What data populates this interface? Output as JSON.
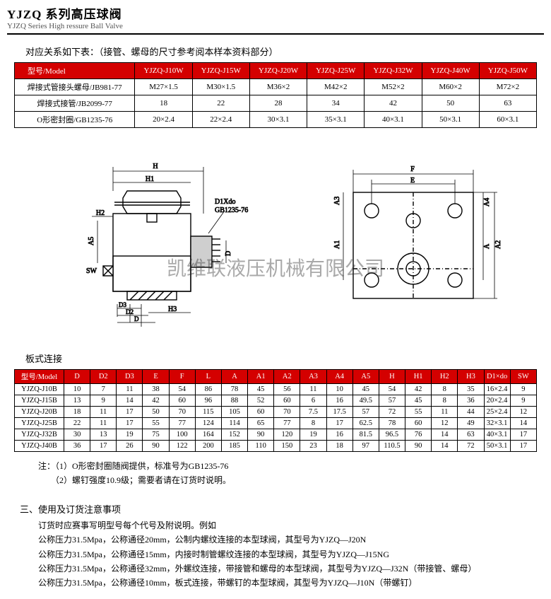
{
  "header": {
    "title_cn": "YJZQ 系列高压球阀",
    "title_en": "YJZQ Series High ressure Ball Valve"
  },
  "subline": "对应关系如下表：（接管、螺母的尺寸参考阅本样本资料部分）",
  "table1": {
    "model_label": "型号/Model",
    "cols": [
      "YJZQ-J10W",
      "YJZQ-J15W",
      "YJZQ-J20W",
      "YJZQ-J25W",
      "YJZQ-J32W",
      "YJZQ-J40W",
      "YJZQ-J50W"
    ],
    "rows": [
      {
        "label": "焊接式管接头螺母/JB981-77",
        "cells": [
          "M27×1.5",
          "M30×1.5",
          "M36×2",
          "M42×2",
          "M52×2",
          "M60×2",
          "M72×2"
        ]
      },
      {
        "label": "焊接式接管/JB2099-77",
        "cells": [
          "18",
          "22",
          "28",
          "34",
          "42",
          "50",
          "63"
        ]
      },
      {
        "label": "O形密封圈/GB1235-76",
        "cells": [
          "20×2.4",
          "22×2.4",
          "30×3.1",
          "35×3.1",
          "40×3.1",
          "50×3.1",
          "60×3.1"
        ]
      }
    ],
    "col_first_width": 170,
    "col_rest_width": 81
  },
  "diagram": {
    "label_d1xdo": "D1Xdo",
    "label_gb": "GB1235-76",
    "dims_left": [
      "H",
      "H1",
      "H2",
      "A5",
      "SW",
      "D3",
      "D2",
      "D",
      "H3"
    ],
    "dims_right": [
      "F",
      "E",
      "A3",
      "A4",
      "A1",
      "A",
      "A2"
    ]
  },
  "watermark": "凯维联液压机械有限公司",
  "section2_label": "板式连接",
  "table2": {
    "model_label": "型号/Model",
    "cols": [
      "D",
      "D2",
      "D3",
      "E",
      "F",
      "L",
      "A",
      "A1",
      "A2",
      "A3",
      "A4",
      "A5",
      "H",
      "H1",
      "H2",
      "H3",
      "D1×do",
      "SW"
    ],
    "rows": [
      {
        "label": "YJZQ-J10B",
        "cells": [
          "10",
          "7",
          "11",
          "38",
          "54",
          "86",
          "78",
          "45",
          "56",
          "11",
          "10",
          "45",
          "54",
          "42",
          "8",
          "35",
          "16×2.4",
          "9"
        ]
      },
      {
        "label": "YJZQ-J15B",
        "cells": [
          "13",
          "9",
          "14",
          "42",
          "60",
          "96",
          "88",
          "52",
          "60",
          "6",
          "16",
          "49.5",
          "57",
          "45",
          "8",
          "36",
          "20×2.4",
          "9"
        ]
      },
      {
        "label": "YJZQ-J20B",
        "cells": [
          "18",
          "11",
          "17",
          "50",
          "70",
          "115",
          "105",
          "60",
          "70",
          "7.5",
          "17.5",
          "57",
          "72",
          "55",
          "11",
          "44",
          "25×2.4",
          "12"
        ]
      },
      {
        "label": "YJZQ-J25B",
        "cells": [
          "22",
          "11",
          "17",
          "55",
          "77",
          "124",
          "114",
          "65",
          "77",
          "8",
          "17",
          "62.5",
          "78",
          "60",
          "12",
          "49",
          "32×3.1",
          "14"
        ]
      },
      {
        "label": "YJZQ-J32B",
        "cells": [
          "30",
          "13",
          "19",
          "75",
          "100",
          "164",
          "152",
          "90",
          "120",
          "19",
          "16",
          "81.5",
          "96.5",
          "76",
          "14",
          "63",
          "40×3.1",
          "17"
        ]
      },
      {
        "label": "YJZQ-J40B",
        "cells": [
          "36",
          "17",
          "26",
          "90",
          "122",
          "200",
          "185",
          "110",
          "150",
          "23",
          "18",
          "97",
          "110.5",
          "90",
          "14",
          "72",
          "50×3.1",
          "17"
        ]
      }
    ]
  },
  "notes": {
    "prefix": "注：",
    "items": [
      "（1）O形密封圈随阀提供，标准号为GB1235-76",
      "（2）螺钉强度10.9级；需要者请在订货时说明。"
    ]
  },
  "usage": {
    "title": "三、使用及订货注意事项",
    "lines": [
      "订货时应赛事写明型号每个代号及附说明。例如",
      "公称压力31.5Mpa，公称通径20mm，公制内螺纹连接的本型球阀，其型号为YJZQ—J20N",
      "公称压力31.5Mpa，公称通径15mm，内接时制管螺纹连接的本型球阀，其型号为YJZQ—J15NG",
      "公称压力31.5Mpa，公称通径32mm，外螺纹连接，带接管和螺母的本型球阀，其型号为YJZQ—J32N（带接管、螺母）",
      "公称压力31.5Mpa，公称通径10mm，板式连接，带螺钉的本型球阀，其型号为YJZQ—J10N（带螺钉）"
    ]
  },
  "colors": {
    "header_bg": "#d40000",
    "header_fg": "#ffffff",
    "border": "#000000",
    "text": "#000000"
  }
}
